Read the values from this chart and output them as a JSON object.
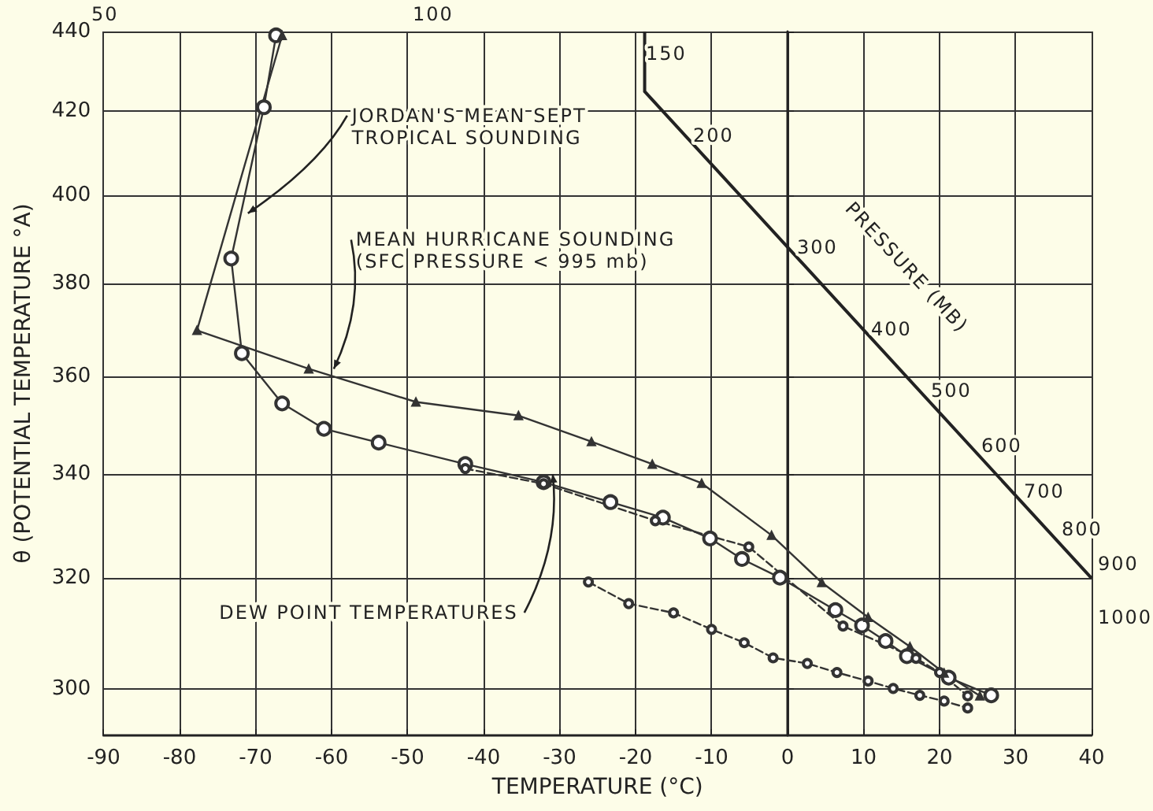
{
  "chart_data": {
    "type": "line",
    "xlabel": "TEMPERATURE (°C)",
    "ylabel": "θ (POTENTIAL TEMPERATURE °A)",
    "xlim": [
      -90,
      40
    ],
    "xticks": [
      -90,
      -80,
      -70,
      -60,
      -50,
      -40,
      -30,
      -20,
      -10,
      0,
      10,
      20,
      30,
      40
    ],
    "ylim": [
      292,
      440
    ],
    "yticks": [
      300,
      320,
      340,
      360,
      380,
      400,
      420,
      440
    ],
    "log": "y",
    "grid": true,
    "series": [
      {
        "color": "#333333",
        "marker": "circle",
        "line_style": "solid",
        "x": [
          -67.3,
          -68.9,
          -73.2,
          -71.8,
          -66.5,
          -61.0,
          -53.8,
          -42.4,
          -32.1,
          -23.3,
          -16.4,
          -10.2,
          -6.0,
          -1.0,
          6.3,
          9.8,
          12.9,
          15.7,
          21.2,
          26.8
        ],
        "values": [
          439,
          421,
          385.5,
          364.8,
          354.3,
          349.1,
          346.3,
          342,
          338.4,
          334.5,
          331.5,
          327.5,
          323.6,
          320.1,
          314.1,
          311.3,
          308.5,
          305.8,
          302,
          298.9
        ]
      },
      {
        "color": "#333333",
        "marker": "triangle",
        "line_style": "solid",
        "x": [
          -66.5,
          -77.7,
          -63.0,
          -48.9,
          -35.4,
          -25.8,
          -17.8,
          -11.3,
          -2.1,
          4.5,
          10.6,
          16.1,
          20.6,
          25.3
        ],
        "values": [
          439,
          369.7,
          361.5,
          354.6,
          351.8,
          346.5,
          342,
          338.2,
          328.1,
          319.2,
          312.8,
          307.5,
          302.8,
          298.8
        ]
      },
      {
        "color": "#333333",
        "marker": "circle",
        "line_style": "dashed",
        "x": [
          -42.4,
          -32.1,
          -17.4,
          -5.1,
          7.3,
          16.9,
          20.0,
          23.7
        ],
        "values": [
          341.1,
          338.1,
          330.9,
          325.9,
          311.2,
          305.4,
          302.9,
          298.8
        ]
      },
      {
        "color": "#333333",
        "marker": "circle",
        "line_style": "dashed",
        "x": [
          -26.2,
          -20.9,
          -15.0,
          -10.0,
          -5.7,
          -1.9,
          2.6,
          6.5,
          10.6,
          13.9,
          17.4,
          20.6,
          23.7
        ],
        "values": [
          319.3,
          315.3,
          313.6,
          310.6,
          308.2,
          305.5,
          304.5,
          302.9,
          301.4,
          300.1,
          298.9,
          297.9,
          296.7
        ]
      }
    ],
    "annotations": [
      {
        "text": "JORDAN'S MEAN SEPT\nTROPICAL SOUNDING",
        "x": -71.0,
        "y": 395.8
      },
      {
        "text": "MEAN HURRICANE SOUNDING\n(SFC PRESSURE < 995 mb)",
        "x": -59.7,
        "y": 361.5
      },
      {
        "text": "DEW POINT TEMPERATURES",
        "x": -30.9,
        "y": 340
      },
      "50",
      "100",
      "150",
      "200",
      "300",
      "400",
      "500",
      "600",
      "700",
      "800",
      "900",
      "1000",
      "PRESSURE (MB)"
    ]
  }
}
